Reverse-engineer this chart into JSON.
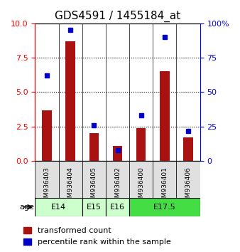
{
  "title": "GDS4591 / 1455184_at",
  "samples": [
    "GSM936403",
    "GSM936404",
    "GSM936405",
    "GSM936402",
    "GSM936400",
    "GSM936401",
    "GSM936406"
  ],
  "red_values": [
    3.7,
    8.7,
    2.0,
    1.1,
    2.4,
    6.5,
    1.7
  ],
  "blue_values": [
    62,
    95,
    26,
    8,
    33,
    90,
    22
  ],
  "age_groups": [
    {
      "label": "E14",
      "span": [
        0,
        2
      ],
      "color": "#ccffcc"
    },
    {
      "label": "E15",
      "span": [
        2,
        3
      ],
      "color": "#ccffcc"
    },
    {
      "label": "E16",
      "span": [
        3,
        4
      ],
      "color": "#ccffcc"
    },
    {
      "label": "E17.5",
      "span": [
        4,
        7
      ],
      "color": "#44dd44"
    }
  ],
  "left_yticks": [
    0,
    2.5,
    5,
    7.5,
    10
  ],
  "left_ylim": [
    0,
    10
  ],
  "right_yticks": [
    0,
    25,
    50,
    75,
    100
  ],
  "right_ylim": [
    0,
    100
  ],
  "bar_color": "#aa1111",
  "marker_color": "#0000cc",
  "bg_color": "#e0e0e0",
  "title_fontsize": 11,
  "tick_fontsize": 8,
  "legend_fontsize": 8
}
